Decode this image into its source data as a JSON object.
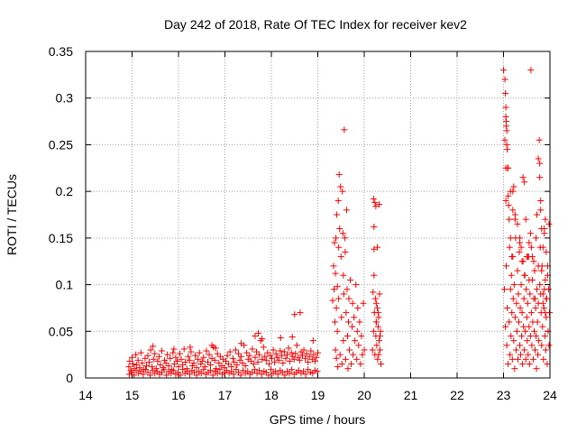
{
  "chart_data": {
    "type": "scatter",
    "title": "Day 242 of 2018, Rate Of TEC Index for receiver kev2",
    "xlabel": "GPS time / hours",
    "ylabel": "ROTI / TECUs",
    "xlim": [
      14,
      24
    ],
    "ylim": [
      0,
      0.35
    ],
    "xticks": [
      "14",
      "15",
      "16",
      "17",
      "18",
      "19",
      "20",
      "21",
      "22",
      "23",
      "24"
    ],
    "yticks": [
      "0",
      "0.05",
      "0.1",
      "0.15",
      "0.2",
      "0.25",
      "0.3",
      "0.35"
    ],
    "grid": true,
    "marker": "+",
    "color": "#ff0000",
    "series": [
      {
        "name": "ROTI",
        "x": [
          14.93,
          14.95,
          14.97,
          15.0,
          15.02,
          15.05,
          15.08,
          15.1,
          15.13,
          15.16,
          15.19,
          15.22,
          15.25,
          15.28,
          15.31,
          15.34,
          15.37,
          15.4,
          15.43,
          15.46,
          15.49,
          15.52,
          15.55,
          15.58,
          15.61,
          15.64,
          15.67,
          15.7,
          15.73,
          15.76,
          15.79,
          15.82,
          15.85,
          15.88,
          15.91,
          15.94,
          15.97,
          16.0,
          16.03,
          16.06,
          16.09,
          16.12,
          16.15,
          16.18,
          16.21,
          16.24,
          16.27,
          16.3,
          16.33,
          16.36,
          16.39,
          16.42,
          16.45,
          16.48,
          16.51,
          16.54,
          16.57,
          16.6,
          16.63,
          16.66,
          16.69,
          16.72,
          16.75,
          16.78,
          16.81,
          16.84,
          16.87,
          16.9,
          16.93,
          16.96,
          16.99,
          17.02,
          17.05,
          17.08,
          17.11,
          17.14,
          17.17,
          17.2,
          17.23,
          17.26,
          17.29,
          17.32,
          17.35,
          17.38,
          17.41,
          17.44,
          17.47,
          17.5,
          17.53,
          17.56,
          17.59,
          17.62,
          17.65,
          17.68,
          17.71,
          17.74,
          17.77,
          17.8,
          17.83,
          17.86,
          17.89,
          17.92,
          17.95,
          17.98,
          18.01,
          18.04,
          18.07,
          18.1,
          18.13,
          18.16,
          18.19,
          18.22,
          18.25,
          18.28,
          18.31,
          18.34,
          18.37,
          18.4,
          18.43,
          18.46,
          18.49,
          18.52,
          18.55,
          18.58,
          18.61,
          18.64,
          18.67,
          18.7,
          18.73,
          18.76,
          18.79,
          18.82,
          18.85,
          18.88,
          18.91,
          18.94,
          18.97,
          19.0,
          14.94,
          14.99,
          15.04,
          15.09,
          15.14,
          15.19,
          15.24,
          15.29,
          15.34,
          15.39,
          15.44,
          15.49,
          15.54,
          15.59,
          15.64,
          15.69,
          15.74,
          15.79,
          15.84,
          15.89,
          15.94,
          15.99,
          16.04,
          16.09,
          16.14,
          16.19,
          16.24,
          16.29,
          16.34,
          16.39,
          16.44,
          16.49,
          16.54,
          16.59,
          16.64,
          16.69,
          16.74,
          16.79,
          16.84,
          16.89,
          16.94,
          16.99,
          17.04,
          17.09,
          17.14,
          17.19,
          17.24,
          17.29,
          17.34,
          17.39,
          17.44,
          17.49,
          17.54,
          17.59,
          17.64,
          17.69,
          17.74,
          17.79,
          17.84,
          17.89,
          17.94,
          17.99,
          18.04,
          18.09,
          18.14,
          18.19,
          18.24,
          18.29,
          18.34,
          18.39,
          18.44,
          18.49,
          18.54,
          18.59,
          18.64,
          18.69,
          18.74,
          18.79,
          18.84,
          18.89,
          18.94,
          18.99,
          15.45,
          15.9,
          16.25,
          16.72,
          16.8,
          17.35,
          17.65,
          17.72,
          17.8,
          18.2,
          18.45,
          18.5,
          18.62,
          18.9,
          19.32,
          19.34,
          19.35,
          19.36,
          19.37,
          19.38,
          19.38,
          19.39,
          19.4,
          19.4,
          19.41,
          19.42,
          19.42,
          19.43,
          19.44,
          19.45,
          19.45,
          19.46,
          19.47,
          19.48,
          19.49,
          19.5,
          19.51,
          19.52,
          19.53,
          19.54,
          19.55,
          19.55,
          19.56,
          19.57,
          19.58,
          19.59,
          19.6,
          19.61,
          19.62,
          19.63,
          19.64,
          19.65,
          19.66,
          19.67,
          19.68,
          19.7,
          19.72,
          19.74,
          19.75,
          19.76,
          19.78,
          19.8,
          19.82,
          19.84,
          19.85,
          19.86,
          19.88,
          19.9,
          19.92,
          19.94,
          19.96,
          19.98,
          20.0,
          20.18,
          20.19,
          20.2,
          20.21,
          20.22,
          20.23,
          20.24,
          20.25,
          20.26,
          20.27,
          20.28,
          20.29,
          20.3,
          20.31,
          20.32,
          20.33,
          20.34,
          20.35,
          20.36,
          20.2,
          20.21,
          20.23,
          20.25,
          20.26,
          20.28,
          20.3,
          20.32,
          20.34,
          20.21,
          20.26,
          20.31,
          23.0,
          23.02,
          23.03,
          23.04,
          23.05,
          23.06,
          23.07,
          23.08,
          23.09,
          23.1,
          23.11,
          23.12,
          23.13,
          23.14,
          23.15,
          23.16,
          23.17,
          23.18,
          23.19,
          23.2,
          23.21,
          23.22,
          23.23,
          23.24,
          23.25,
          23.26,
          23.27,
          23.28,
          23.29,
          23.3,
          23.31,
          23.32,
          23.33,
          23.34,
          23.35,
          23.36,
          23.37,
          23.38,
          23.39,
          23.4,
          23.41,
          23.42,
          23.43,
          23.44,
          23.45,
          23.46,
          23.47,
          23.48,
          23.49,
          23.5,
          23.51,
          23.52,
          23.53,
          23.54,
          23.55,
          23.56,
          23.57,
          23.58,
          23.59,
          23.6,
          23.61,
          23.62,
          23.63,
          23.64,
          23.65,
          23.66,
          23.67,
          23.68,
          23.69,
          23.7,
          23.71,
          23.72,
          23.73,
          23.74,
          23.75,
          23.76,
          23.77,
          23.78,
          23.79,
          23.8,
          23.81,
          23.82,
          23.83,
          23.84,
          23.85,
          23.86,
          23.87,
          23.88,
          23.89,
          23.9,
          23.91,
          23.92,
          23.93,
          23.94,
          23.95,
          23.96,
          23.97,
          23.98,
          23.99,
          23.05,
          23.06,
          23.07,
          23.08,
          23.1,
          23.12,
          23.15,
          23.18,
          23.2,
          23.22,
          23.25,
          23.3,
          23.35,
          23.38,
          23.42,
          23.45,
          23.48,
          23.52,
          23.55,
          23.58,
          23.62,
          23.65,
          23.7,
          23.72,
          23.75,
          23.78,
          23.8,
          23.82,
          23.85,
          23.88,
          23.9,
          23.92,
          23.95,
          23.98,
          23.03,
          23.04,
          23.05,
          23.06,
          23.07,
          23.05,
          23.1,
          23.15,
          23.2,
          23.25,
          23.35,
          23.4,
          23.45,
          23.5,
          23.55,
          23.6,
          23.68,
          23.75,
          23.78,
          23.8,
          23.82,
          23.85,
          23.88,
          23.9,
          23.92
        ],
        "y": [
          0.012,
          0.018,
          0.008,
          0.022,
          0.015,
          0.01,
          0.025,
          0.014,
          0.019,
          0.011,
          0.027,
          0.016,
          0.009,
          0.021,
          0.013,
          0.024,
          0.017,
          0.03,
          0.012,
          0.02,
          0.026,
          0.01,
          0.018,
          0.023,
          0.014,
          0.029,
          0.011,
          0.019,
          0.016,
          0.025,
          0.013,
          0.021,
          0.009,
          0.027,
          0.015,
          0.022,
          0.018,
          0.012,
          0.026,
          0.02,
          0.014,
          0.031,
          0.017,
          0.01,
          0.023,
          0.019,
          0.028,
          0.013,
          0.016,
          0.024,
          0.011,
          0.02,
          0.027,
          0.015,
          0.018,
          0.022,
          0.012,
          0.029,
          0.017,
          0.025,
          0.014,
          0.021,
          0.033,
          0.019,
          0.01,
          0.026,
          0.016,
          0.023,
          0.013,
          0.02,
          0.011,
          0.018,
          0.024,
          0.015,
          0.028,
          0.012,
          0.021,
          0.017,
          0.03,
          0.014,
          0.026,
          0.019,
          0.023,
          0.016,
          0.035,
          0.013,
          0.027,
          0.02,
          0.024,
          0.018,
          0.031,
          0.015,
          0.022,
          0.028,
          0.017,
          0.025,
          0.04,
          0.02,
          0.033,
          0.023,
          0.019,
          0.027,
          0.015,
          0.024,
          0.021,
          0.03,
          0.017,
          0.026,
          0.022,
          0.019,
          0.029,
          0.024,
          0.016,
          0.028,
          0.021,
          0.025,
          0.032,
          0.018,
          0.027,
          0.023,
          0.02,
          0.026,
          0.035,
          0.022,
          0.019,
          0.028,
          0.024,
          0.03,
          0.021,
          0.026,
          0.017,
          0.023,
          0.029,
          0.02,
          0.025,
          0.018,
          0.022,
          0.027,
          0.004,
          0.006,
          0.003,
          0.008,
          0.005,
          0.007,
          0.004,
          0.009,
          0.006,
          0.003,
          0.008,
          0.005,
          0.007,
          0.004,
          0.006,
          0.009,
          0.003,
          0.007,
          0.005,
          0.008,
          0.004,
          0.006,
          0.003,
          0.009,
          0.005,
          0.007,
          0.004,
          0.008,
          0.006,
          0.003,
          0.007,
          0.005,
          0.009,
          0.004,
          0.006,
          0.008,
          0.003,
          0.007,
          0.005,
          0.009,
          0.004,
          0.006,
          0.008,
          0.005,
          0.007,
          0.004,
          0.009,
          0.006,
          0.003,
          0.008,
          0.005,
          0.007,
          0.004,
          0.006,
          0.009,
          0.005,
          0.008,
          0.004,
          0.007,
          0.006,
          0.003,
          0.009,
          0.005,
          0.007,
          0.004,
          0.008,
          0.006,
          0.003,
          0.007,
          0.005,
          0.009,
          0.004,
          0.006,
          0.008,
          0.005,
          0.007,
          0.004,
          0.009,
          0.006,
          0.005,
          0.008,
          0.007,
          0.034,
          0.031,
          0.033,
          0.035,
          0.032,
          0.037,
          0.045,
          0.048,
          0.042,
          0.043,
          0.044,
          0.068,
          0.07,
          0.04,
          0.083,
          0.12,
          0.095,
          0.145,
          0.06,
          0.112,
          0.03,
          0.15,
          0.075,
          0.021,
          0.175,
          0.05,
          0.098,
          0.012,
          0.19,
          0.14,
          0.085,
          0.218,
          0.16,
          0.025,
          0.205,
          0.13,
          0.065,
          0.015,
          0.2,
          0.155,
          0.11,
          0.04,
          0.09,
          0.266,
          0.15,
          0.135,
          0.02,
          0.07,
          0.18,
          0.095,
          0.045,
          0.01,
          0.06,
          0.085,
          0.03,
          0.105,
          0.015,
          0.055,
          0.08,
          0.025,
          0.065,
          0.04,
          0.1,
          0.02,
          0.05,
          0.075,
          0.035,
          0.06,
          0.015,
          0.045,
          0.025,
          0.08,
          0.03,
          0.03,
          0.092,
          0.05,
          0.138,
          0.07,
          0.025,
          0.085,
          0.045,
          0.06,
          0.035,
          0.075,
          0.02,
          0.055,
          0.065,
          0.04,
          0.09,
          0.03,
          0.05,
          0.015,
          0.192,
          0.162,
          0.188,
          0.184,
          0.08,
          0.14,
          0.07,
          0.186,
          0.045,
          0.11,
          0.06,
          0.025,
          0.33,
          0.095,
          0.255,
          0.055,
          0.19,
          0.12,
          0.035,
          0.075,
          0.225,
          0.015,
          0.185,
          0.06,
          0.14,
          0.025,
          0.095,
          0.045,
          0.11,
          0.07,
          0.02,
          0.13,
          0.085,
          0.04,
          0.1,
          0.01,
          0.065,
          0.15,
          0.03,
          0.08,
          0.05,
          0.115,
          0.02,
          0.09,
          0.06,
          0.135,
          0.035,
          0.075,
          0.025,
          0.1,
          0.045,
          0.07,
          0.015,
          0.125,
          0.055,
          0.085,
          0.03,
          0.11,
          0.05,
          0.02,
          0.095,
          0.065,
          0.04,
          0.08,
          0.025,
          0.13,
          0.055,
          0.015,
          0.09,
          0.045,
          0.33,
          0.07,
          0.035,
          0.105,
          0.06,
          0.02,
          0.085,
          0.05,
          0.115,
          0.03,
          0.075,
          0.045,
          0.01,
          0.095,
          0.06,
          0.025,
          0.08,
          0.04,
          0.255,
          0.215,
          0.14,
          0.18,
          0.07,
          0.035,
          0.12,
          0.055,
          0.09,
          0.02,
          0.075,
          0.16,
          0.045,
          0.105,
          0.03,
          0.065,
          0.085,
          0.015,
          0.12,
          0.05,
          0.095,
          0.035,
          0.07,
          0.28,
          0.275,
          0.265,
          0.245,
          0.195,
          0.17,
          0.15,
          0.13,
          0.2,
          0.205,
          0.175,
          0.165,
          0.145,
          0.14,
          0.215,
          0.21,
          0.17,
          0.13,
          0.145,
          0.155,
          0.13,
          0.125,
          0.15,
          0.175,
          0.235,
          0.23,
          0.19,
          0.16,
          0.14,
          0.155,
          0.17,
          0.135,
          0.11,
          0.165,
          0.32,
          0.305,
          0.29,
          0.27,
          0.25,
          0.225,
          0.225,
          0.2,
          0.18,
          0.17,
          0.15,
          0.125,
          0.11,
          0.13,
          0.105,
          0.14,
          0.085,
          0.12,
          0.1,
          0.09,
          0.115,
          0.08,
          0.095,
          0.07,
          0.085
        ]
      }
    ]
  }
}
